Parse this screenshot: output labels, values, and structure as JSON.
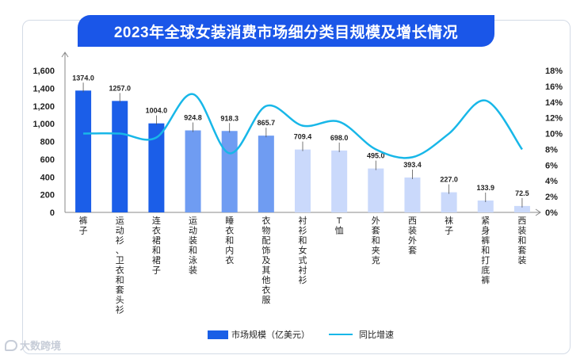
{
  "title": "2023年全球女装消费市场细分类目规模及增长情况",
  "watermark": "大数跨境",
  "legend": {
    "bar_label": "市场规模（亿美元）",
    "line_label": "同比增速"
  },
  "colors": {
    "dark_bar": "#1b5ee8",
    "mid_bar": "#6f9cf2",
    "light_bar": "#cad9fb",
    "line": "#18b7e8",
    "title_bg": "#1a56e8"
  },
  "chart_data": {
    "type": "bar",
    "title": "2023年全球女装消费市场细分类目规模及增长情况",
    "categories": [
      "裤子",
      "运动衫、卫衣和套头衫",
      "连衣裙和裙子",
      "运动装和泳装",
      "睡衣和内衣",
      "衣物配饰及其他衣服",
      "衬衫和女式衬衫",
      "T恤",
      "外套和夹克",
      "西装外套",
      "袜子",
      "紧身裤和打底裤",
      "西装和套装"
    ],
    "series": [
      {
        "name": "市场规模（亿美元）",
        "type": "bar",
        "axis": "left",
        "values": [
          1374.0,
          1257.0,
          1004.0,
          924.8,
          918.3,
          865.7,
          709.4,
          698.0,
          495.0,
          393.4,
          227.0,
          133.9,
          72.5
        ],
        "labels": [
          "1374.0",
          "1257.0",
          "1004.0",
          "924.8",
          "918.3",
          "865.7",
          "709.4",
          "698.0",
          "495.0",
          "393.4",
          "227.0",
          "133.9",
          "72.5"
        ],
        "shade": [
          "dark",
          "dark",
          "dark",
          "mid",
          "mid",
          "mid",
          "light",
          "light",
          "light",
          "light",
          "light",
          "light",
          "light"
        ]
      },
      {
        "name": "同比增速",
        "type": "line",
        "axis": "right",
        "values": [
          10.0,
          10.0,
          9.5,
          15.0,
          7.5,
          13.5,
          11.0,
          11.5,
          8.0,
          7.0,
          10.0,
          14.2,
          8.0
        ]
      }
    ],
    "y_left": {
      "min": 0,
      "max": 1600,
      "ticks": [
        "0",
        "200",
        "400",
        "600",
        "800",
        "1,000",
        "1,200",
        "1,400",
        "1,600"
      ]
    },
    "y_right": {
      "min": 0,
      "max": 18,
      "ticks": [
        "0%",
        "2%",
        "4%",
        "6%",
        "8%",
        "10%",
        "12%",
        "14%",
        "16%",
        "18%"
      ]
    }
  }
}
